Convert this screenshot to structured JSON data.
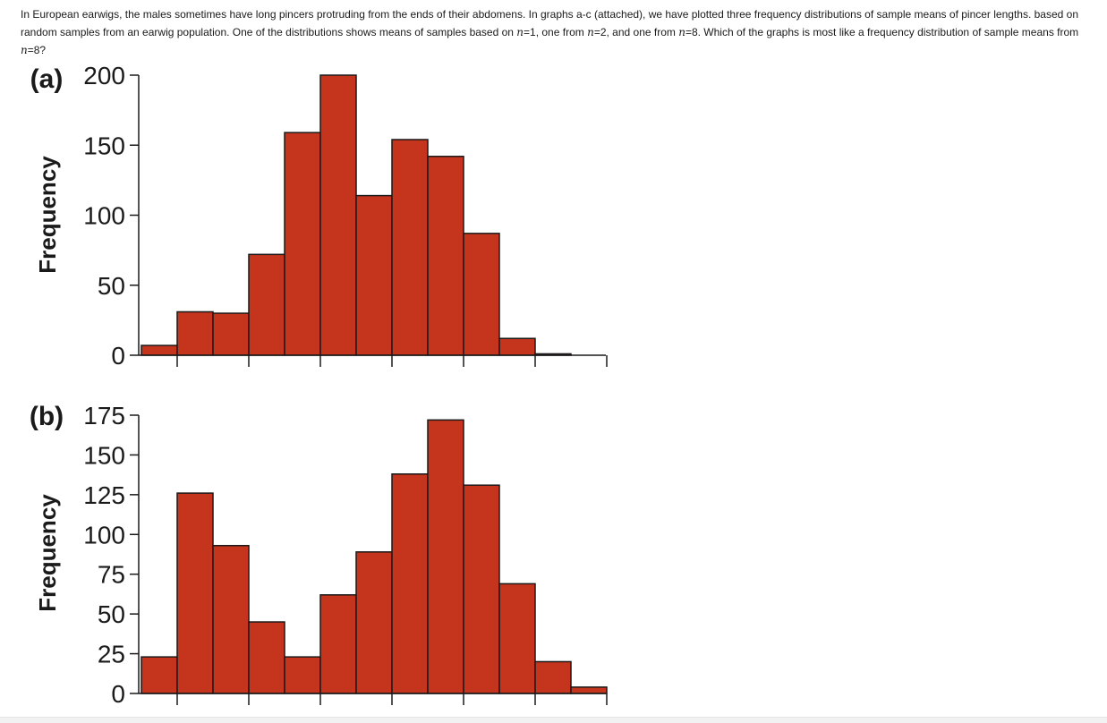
{
  "question": {
    "part1": "In European earwigs, the males sometimes have long pincers protruding from the ends of their abdomens. In graphs a-c (attached), we have plotted three frequency distributions of sample means of pincer lengths. based on random samples from an earwig population. One of the distributions shows means of samples based on ",
    "n_symbol": "n",
    "part2": "=1, one from ",
    "part3": "=2, and one from ",
    "part4": "=8. Which of the graphs is most like a frequency distribution of sample means from ",
    "part5": "=8?"
  },
  "colors": {
    "bar_fill": "#c5341d",
    "bar_stroke": "#1a1a1a",
    "axis": "#1a1a1a"
  },
  "chart_data": [
    {
      "type": "bar",
      "panel_label": "(a)",
      "ylabel": "Frequency",
      "ylim": [
        0,
        200
      ],
      "yticks": [
        0,
        50,
        100,
        150,
        200
      ],
      "values": [
        7,
        31,
        30,
        72,
        159,
        200,
        114,
        154,
        142,
        87,
        12,
        1
      ]
    },
    {
      "type": "bar",
      "panel_label": "(b)",
      "ylabel": "Frequency",
      "ylim": [
        0,
        175
      ],
      "yticks": [
        0,
        25,
        50,
        75,
        100,
        125,
        150,
        175
      ],
      "values": [
        23,
        126,
        93,
        45,
        23,
        62,
        89,
        138,
        172,
        131,
        69,
        20,
        4
      ]
    }
  ]
}
